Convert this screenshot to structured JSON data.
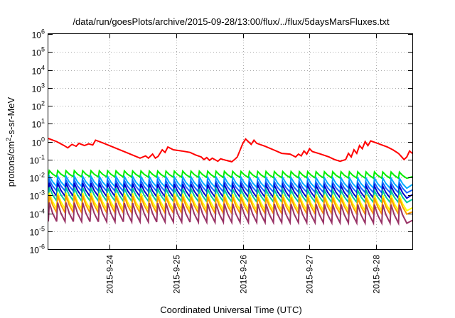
{
  "chart_data": {
    "type": "line",
    "title": "/data/run/goesPlots/archive/2015-09-28/13:00/flux/../flux/5daysMarsFluxes.txt",
    "xlabel": "Coordinated Universal Time (UTC)",
    "ylabel": {
      "base": "protons/cm",
      "sup": "2",
      "rest": "-s-sr-MeV"
    },
    "yscale": "log",
    "ylim": [
      1e-06,
      1000000.0
    ],
    "xlim": [
      "2015-09-23 02:00",
      "2015-09-28 13:00"
    ],
    "grid": true,
    "y_ticks": [
      {
        "value": 1e-06,
        "base": "10",
        "exp": "-6"
      },
      {
        "value": 1e-05,
        "base": "10",
        "exp": "-5"
      },
      {
        "value": 0.0001,
        "base": "10",
        "exp": "-4"
      },
      {
        "value": 0.001,
        "base": "10",
        "exp": "-3"
      },
      {
        "value": 0.01,
        "base": "10",
        "exp": "-2"
      },
      {
        "value": 0.1,
        "base": "10",
        "exp": "-1"
      },
      {
        "value": 1,
        "base": "10",
        "exp": "0"
      },
      {
        "value": 10,
        "base": "10",
        "exp": "1"
      },
      {
        "value": 100,
        "base": "10",
        "exp": "2"
      },
      {
        "value": 1000,
        "base": "10",
        "exp": "3"
      },
      {
        "value": 10000,
        "base": "10",
        "exp": "4"
      },
      {
        "value": 100000,
        "base": "10",
        "exp": "5"
      },
      {
        "value": 1000000,
        "base": "10",
        "exp": "6"
      }
    ],
    "x_ticks": [
      {
        "value": "2015-09-24",
        "label": "2015-9-24"
      },
      {
        "value": "2015-09-25",
        "label": "2015-9-25"
      },
      {
        "value": "2015-09-26",
        "label": "2015-9-26"
      },
      {
        "value": "2015-09-27",
        "label": "2015-9-27"
      },
      {
        "value": "2015-09-28",
        "label": "2015-9-28"
      }
    ],
    "series": [
      {
        "color": "#ff0000",
        "points": [
          [
            "2015-09-23 02:00",
            1.5
          ],
          [
            "2015-09-23 05:00",
            1.0
          ],
          [
            "2015-09-23 07:30",
            0.62
          ],
          [
            "2015-09-23 09:00",
            0.45
          ],
          [
            "2015-09-23 10:30",
            0.7
          ],
          [
            "2015-09-23 12:00",
            0.55
          ],
          [
            "2015-09-23 13:00",
            0.8
          ],
          [
            "2015-09-23 15:00",
            0.6
          ],
          [
            "2015-09-23 16:30",
            0.75
          ],
          [
            "2015-09-23 18:00",
            0.65
          ],
          [
            "2015-09-23 19:00",
            1.2
          ],
          [
            "2015-09-23 22:00",
            0.8
          ],
          [
            "2015-09-24 02:00",
            0.45
          ],
          [
            "2015-09-24 06:00",
            0.25
          ],
          [
            "2015-09-24 09:00",
            0.16
          ],
          [
            "2015-09-24 11:00",
            0.12
          ],
          [
            "2015-09-24 13:00",
            0.16
          ],
          [
            "2015-09-24 14:00",
            0.12
          ],
          [
            "2015-09-24 15:30",
            0.2
          ],
          [
            "2015-09-24 16:30",
            0.12
          ],
          [
            "2015-09-24 17:30",
            0.15
          ],
          [
            "2015-09-24 19:00",
            0.35
          ],
          [
            "2015-09-24 20:00",
            0.25
          ],
          [
            "2015-09-24 21:00",
            0.5
          ],
          [
            "2015-09-24 23:00",
            0.35
          ],
          [
            "2015-09-25 02:00",
            0.3
          ],
          [
            "2015-09-25 05:00",
            0.25
          ],
          [
            "2015-09-25 07:00",
            0.18
          ],
          [
            "2015-09-25 09:00",
            0.14
          ],
          [
            "2015-09-25 10:00",
            0.1
          ],
          [
            "2015-09-25 11:00",
            0.13
          ],
          [
            "2015-09-25 12:00",
            0.09
          ],
          [
            "2015-09-25 13:00",
            0.12
          ],
          [
            "2015-09-25 15:00",
            0.08
          ],
          [
            "2015-09-25 16:00",
            0.11
          ],
          [
            "2015-09-25 18:00",
            0.09
          ],
          [
            "2015-09-25 20:00",
            0.075
          ],
          [
            "2015-09-25 21:00",
            0.1
          ],
          [
            "2015-09-25 22:00",
            0.14
          ],
          [
            "2015-09-26 00:00",
            0.8
          ],
          [
            "2015-09-26 01:00",
            1.4
          ],
          [
            "2015-09-26 03:00",
            0.7
          ],
          [
            "2015-09-26 04:00",
            1.2
          ],
          [
            "2015-09-26 05:00",
            0.8
          ],
          [
            "2015-09-26 08:00",
            0.55
          ],
          [
            "2015-09-26 11:00",
            0.35
          ],
          [
            "2015-09-26 14:00",
            0.22
          ],
          [
            "2015-09-26 17:00",
            0.2
          ],
          [
            "2015-09-26 19:00",
            0.14
          ],
          [
            "2015-09-26 20:00",
            0.2
          ],
          [
            "2015-09-26 21:00",
            0.16
          ],
          [
            "2015-09-26 22:00",
            0.3
          ],
          [
            "2015-09-26 23:00",
            0.2
          ],
          [
            "2015-09-27 00:00",
            0.4
          ],
          [
            "2015-09-27 01:00",
            0.28
          ],
          [
            "2015-09-27 04:00",
            0.2
          ],
          [
            "2015-09-27 07:00",
            0.14
          ],
          [
            "2015-09-27 09:00",
            0.1
          ],
          [
            "2015-09-27 11:00",
            0.08
          ],
          [
            "2015-09-27 13:00",
            0.1
          ],
          [
            "2015-09-27 14:00",
            0.22
          ],
          [
            "2015-09-27 15:00",
            0.14
          ],
          [
            "2015-09-27 16:00",
            0.35
          ],
          [
            "2015-09-27 17:00",
            0.22
          ],
          [
            "2015-09-27 18:00",
            0.6
          ],
          [
            "2015-09-27 19:00",
            0.4
          ],
          [
            "2015-09-27 20:00",
            1.0
          ],
          [
            "2015-09-27 21:00",
            0.6
          ],
          [
            "2015-09-27 22:00",
            1.1
          ],
          [
            "2015-09-28 01:00",
            0.75
          ],
          [
            "2015-09-28 04:00",
            0.5
          ],
          [
            "2015-09-28 06:00",
            0.35
          ],
          [
            "2015-09-28 08:00",
            0.22
          ],
          [
            "2015-09-28 09:00",
            0.15
          ],
          [
            "2015-09-28 10:00",
            0.1
          ],
          [
            "2015-09-28 11:00",
            0.14
          ],
          [
            "2015-09-28 12:00",
            0.3
          ],
          [
            "2015-09-28 13:00",
            0.22
          ]
        ]
      },
      {
        "color": "#00ee00",
        "start": "2015-09-23 02:00",
        "period_hours": 3,
        "peak_start": 0.024,
        "peak_end": 0.02,
        "min_start": 0.011,
        "min_end": 0.009,
        "last": 0.011
      },
      {
        "color": "#00aaff",
        "start": "2015-09-23 02:00",
        "period_hours": 3,
        "peak_start": 0.012,
        "peak_end": 0.009,
        "min_start": 0.0032,
        "min_end": 0.0025,
        "last": 0.004
      },
      {
        "color": "#1464ff",
        "start": "2015-09-23 02:00",
        "period_hours": 3,
        "peak_start": 0.0075,
        "peak_end": 0.005,
        "min_start": 0.0018,
        "min_end": 0.0014,
        "last": 0.002
      },
      {
        "color": "#0000cc",
        "start": "2015-09-23 02:00",
        "period_hours": 3,
        "peak_start": 0.005,
        "peak_end": 0.0032,
        "min_start": 0.0009,
        "min_end": 0.0007,
        "last": 0.0011
      },
      {
        "color": "#00c8a0",
        "start": "2015-09-23 02:00",
        "period_hours": 3,
        "peak_start": 0.0028,
        "peak_end": 0.0018,
        "min_start": 0.0005,
        "min_end": 0.0004,
        "last": 0.0006
      },
      {
        "color": "#ffff00",
        "start": "2015-09-23 02:00",
        "period_hours": 3,
        "peak_start": 0.0014,
        "peak_end": 0.001,
        "min_start": 0.00018,
        "min_end": 0.00014,
        "last": 0.0002
      },
      {
        "color": "#ff9900",
        "start": "2015-09-23 02:00",
        "period_hours": 3,
        "peak_start": 0.001,
        "peak_end": 0.0007,
        "min_start": 0.00011,
        "min_end": 9e-05,
        "last": 0.00012
      },
      {
        "color": "#993366",
        "start": "2015-09-23 02:00",
        "period_hours": 3,
        "peak_start": 0.0004,
        "peak_end": 0.0003,
        "min_start": 3.5e-05,
        "min_end": 2.8e-05,
        "last": 4e-05
      }
    ]
  }
}
